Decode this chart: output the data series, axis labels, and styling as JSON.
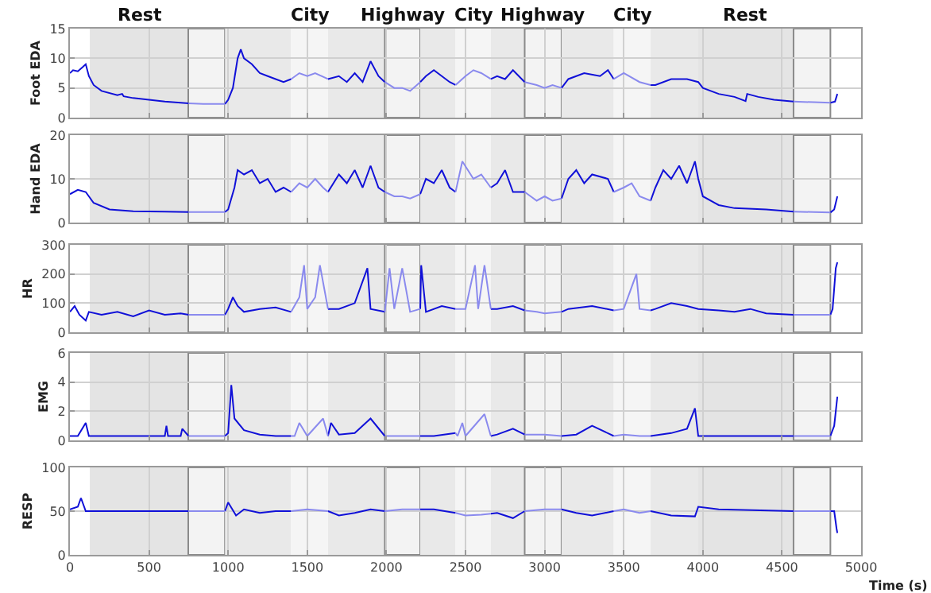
{
  "chart_data": [
    {
      "type": "line",
      "ylabel": "Foot EDA",
      "xlim": [
        0,
        5000
      ],
      "xticks": [
        0,
        500,
        1000,
        1500,
        2000,
        2500,
        3000,
        3500,
        4000,
        4500,
        5000
      ],
      "ylim": [
        0,
        15
      ],
      "yticks": [
        0,
        5,
        10,
        15
      ],
      "tick_labels": "y",
      "grid": true,
      "bands": [
        {
          "axis": "x",
          "from": 126,
          "to": 748,
          "label": "Rest",
          "color": "#e4e4e4"
        },
        {
          "axis": "x",
          "from": 748,
          "to": 980,
          "color": "#f3f3f3"
        },
        {
          "axis": "x",
          "from": 980,
          "to": 1398,
          "color": "#e9e9e9"
        },
        {
          "axis": "x",
          "from": 1398,
          "to": 1631,
          "label": "City",
          "color": "#f5f5f5"
        },
        {
          "axis": "x",
          "from": 1631,
          "to": 1990,
          "color": "#e9e9e9"
        },
        {
          "axis": "x",
          "from": 1990,
          "to": 2214,
          "label": "Highway",
          "color": "#f3f3f3"
        },
        {
          "axis": "x",
          "from": 2214,
          "to": 2437,
          "color": "#e9e9e9"
        },
        {
          "axis": "x",
          "from": 2437,
          "to": 2660,
          "label": "City",
          "color": "#f5f5f5"
        },
        {
          "axis": "x",
          "from": 2660,
          "to": 2874,
          "color": "#e9e9e9"
        },
        {
          "axis": "x",
          "from": 2874,
          "to": 3107,
          "label": "Highway",
          "color": "#f3f3f3"
        },
        {
          "axis": "x",
          "from": 3107,
          "to": 3437,
          "color": "#e9e9e9"
        },
        {
          "axis": "x",
          "from": 3437,
          "to": 3670,
          "label": "City",
          "color": "#f5f5f5"
        },
        {
          "axis": "x",
          "from": 3670,
          "to": 3971,
          "color": "#e9e9e9"
        },
        {
          "axis": "x",
          "from": 3971,
          "to": 4573,
          "label": "Rest",
          "color": "#e4e4e4"
        },
        {
          "axis": "x",
          "from": 4573,
          "to": 4806,
          "color": "#f3f3f3"
        }
      ],
      "series": [
        {
          "color": "#1010d8",
          "x": [
            0,
            20,
            50,
            80,
            100,
            120,
            150,
            200,
            300,
            330,
            340,
            400,
            500,
            600,
            700,
            750,
            null,
            980,
            1000,
            1030,
            1060,
            1080,
            1100,
            1150,
            1200,
            1250,
            1300,
            1350,
            1398,
            null,
            1631,
            1700,
            1750,
            1800,
            1850,
            1900,
            1950,
            1990,
            null,
            2214,
            2250,
            2300,
            2350,
            2400,
            2437,
            null,
            2660,
            2700,
            2750,
            2800,
            2874,
            null,
            3107,
            3150,
            3250,
            3350,
            3400,
            3437,
            null,
            3670,
            3700,
            3800,
            3900,
            3971,
            4000,
            4100,
            4200,
            4270,
            4280,
            4350,
            4450,
            4573,
            null,
            4806,
            4835,
            4850
          ],
          "values": [
            7.5,
            8,
            7.8,
            8.5,
            9,
            7,
            5.5,
            4.5,
            3.8,
            4,
            3.6,
            3.3,
            3,
            2.7,
            2.5,
            2.4,
            null,
            2.3,
            3,
            5,
            10,
            11.5,
            10,
            9,
            7.5,
            7,
            6.5,
            6,
            6.5,
            null,
            6.5,
            7,
            6,
            7.5,
            6,
            9.5,
            7,
            6,
            null,
            6,
            7,
            8,
            7,
            6,
            5.5,
            null,
            6.5,
            7,
            6.5,
            8,
            6,
            null,
            5,
            6.5,
            7.5,
            7,
            8,
            6.5,
            null,
            5.5,
            5.5,
            6.5,
            6.5,
            6,
            5,
            4,
            3.5,
            2.8,
            4,
            3.5,
            3,
            2.7,
            null,
            2.5,
            2.7,
            4
          ]
        },
        {
          "color": "#8a8aee",
          "x": [
            750,
            850,
            980,
            null,
            1398,
            1450,
            1500,
            1550,
            1631,
            null,
            1990,
            2050,
            2100,
            2150,
            2214,
            null,
            2437,
            2500,
            2550,
            2600,
            2660,
            null,
            2874,
            2950,
            3000,
            3050,
            3107,
            null,
            3437,
            3500,
            3600,
            3670,
            null,
            4573,
            4700,
            4806
          ],
          "values": [
            2.4,
            2.3,
            2.3,
            null,
            6.5,
            7.5,
            7,
            7.5,
            6.5,
            null,
            6,
            5,
            5,
            4.5,
            6,
            null,
            5.5,
            7,
            8,
            7.5,
            6.5,
            null,
            6,
            5.5,
            5,
            5.5,
            5,
            null,
            6.5,
            7.5,
            6,
            5.5,
            null,
            2.7,
            2.6,
            2.5
          ]
        }
      ]
    },
    {
      "type": "line",
      "ylabel": "Hand EDA",
      "xlim": [
        0,
        5000
      ],
      "xticks": [
        0,
        500,
        1000,
        1500,
        2000,
        2500,
        3000,
        3500,
        4000,
        4500,
        5000
      ],
      "ylim": [
        0,
        20
      ],
      "yticks": [
        0,
        10,
        20
      ],
      "tick_labels": "y",
      "grid": true,
      "bands": [
        {
          "axis": "x",
          "from": 126,
          "to": 748,
          "color": "#e4e4e4"
        },
        {
          "axis": "x",
          "from": 748,
          "to": 980,
          "color": "#f3f3f3"
        },
        {
          "axis": "x",
          "from": 980,
          "to": 1398,
          "color": "#e9e9e9"
        },
        {
          "axis": "x",
          "from": 1398,
          "to": 1631,
          "color": "#f5f5f5"
        },
        {
          "axis": "x",
          "from": 1631,
          "to": 1990,
          "color": "#e9e9e9"
        },
        {
          "axis": "x",
          "from": 1990,
          "to": 2214,
          "color": "#f3f3f3"
        },
        {
          "axis": "x",
          "from": 2214,
          "to": 2437,
          "color": "#e9e9e9"
        },
        {
          "axis": "x",
          "from": 2437,
          "to": 2660,
          "color": "#f5f5f5"
        },
        {
          "axis": "x",
          "from": 2660,
          "to": 2874,
          "color": "#e9e9e9"
        },
        {
          "axis": "x",
          "from": 2874,
          "to": 3107,
          "color": "#f3f3f3"
        },
        {
          "axis": "x",
          "from": 3107,
          "to": 3437,
          "color": "#e9e9e9"
        },
        {
          "axis": "x",
          "from": 3437,
          "to": 3670,
          "color": "#f5f5f5"
        },
        {
          "axis": "x",
          "from": 3670,
          "to": 3971,
          "color": "#e9e9e9"
        },
        {
          "axis": "x",
          "from": 3971,
          "to": 4573,
          "color": "#e4e4e4"
        },
        {
          "axis": "x",
          "from": 4573,
          "to": 4806,
          "color": "#f3f3f3"
        }
      ],
      "series": [
        {
          "color": "#1010d8",
          "x": [
            0,
            50,
            100,
            150,
            250,
            400,
            600,
            750,
            null,
            980,
            1000,
            1040,
            1060,
            1100,
            1150,
            1200,
            1250,
            1300,
            1350,
            1398,
            null,
            1631,
            1700,
            1750,
            1800,
            1850,
            1900,
            1950,
            1990,
            null,
            2214,
            2250,
            2300,
            2350,
            2400,
            2437,
            null,
            2660,
            2700,
            2750,
            2800,
            2874,
            null,
            3107,
            3150,
            3200,
            3250,
            3300,
            3400,
            3437,
            null,
            3670,
            3700,
            3750,
            3800,
            3850,
            3900,
            3950,
            3971,
            4000,
            4100,
            4200,
            4400,
            4573,
            null,
            4806,
            4830,
            4850
          ],
          "values": [
            6.5,
            7.5,
            7,
            4.5,
            3,
            2.6,
            2.5,
            2.4,
            null,
            2.4,
            3,
            8,
            12,
            11,
            12,
            9,
            10,
            7,
            8,
            7,
            null,
            7,
            11,
            9,
            12,
            8,
            13,
            8,
            7,
            null,
            6.5,
            10,
            9,
            12,
            8,
            7,
            null,
            8,
            9,
            12,
            7,
            7,
            null,
            5.5,
            10,
            12,
            9,
            11,
            10,
            7,
            null,
            5,
            8,
            12,
            10,
            13,
            9,
            14,
            10,
            6,
            4,
            3.3,
            3,
            2.5,
            null,
            2.3,
            3,
            6
          ]
        },
        {
          "color": "#8a8aee",
          "x": [
            750,
            850,
            980,
            null,
            1398,
            1450,
            1500,
            1550,
            1600,
            1631,
            null,
            1990,
            2050,
            2100,
            2150,
            2214,
            null,
            2437,
            2480,
            2550,
            2600,
            2660,
            null,
            2874,
            2950,
            3000,
            3050,
            3107,
            null,
            3437,
            3500,
            3550,
            3600,
            3670,
            null,
            4573,
            4700,
            4806
          ],
          "values": [
            2.4,
            2.4,
            2.4,
            null,
            7,
            9,
            8,
            10,
            8,
            7,
            null,
            7,
            6,
            6,
            5.5,
            6.5,
            null,
            7,
            14,
            10,
            11,
            8,
            null,
            7,
            5,
            6,
            5,
            5.5,
            null,
            7,
            8,
            9,
            6,
            5,
            null,
            2.5,
            2.4,
            2.3
          ]
        }
      ]
    },
    {
      "type": "line",
      "ylabel": "HR",
      "xlim": [
        0,
        5000
      ],
      "xticks": [
        0,
        500,
        1000,
        1500,
        2000,
        2500,
        3000,
        3500,
        4000,
        4500,
        5000
      ],
      "ylim": [
        0,
        300
      ],
      "yticks": [
        0,
        100,
        200,
        300
      ],
      "tick_labels": "y",
      "grid": true,
      "bands": [
        {
          "axis": "x",
          "from": 126,
          "to": 748,
          "color": "#e4e4e4"
        },
        {
          "axis": "x",
          "from": 748,
          "to": 980,
          "color": "#f3f3f3"
        },
        {
          "axis": "x",
          "from": 980,
          "to": 1398,
          "color": "#e9e9e9"
        },
        {
          "axis": "x",
          "from": 1398,
          "to": 1631,
          "color": "#f5f5f5"
        },
        {
          "axis": "x",
          "from": 1631,
          "to": 1990,
          "color": "#e9e9e9"
        },
        {
          "axis": "x",
          "from": 1990,
          "to": 2214,
          "color": "#f3f3f3"
        },
        {
          "axis": "x",
          "from": 2214,
          "to": 2437,
          "color": "#e9e9e9"
        },
        {
          "axis": "x",
          "from": 2437,
          "to": 2660,
          "color": "#f5f5f5"
        },
        {
          "axis": "x",
          "from": 2660,
          "to": 2874,
          "color": "#e9e9e9"
        },
        {
          "axis": "x",
          "from": 2874,
          "to": 3107,
          "color": "#f3f3f3"
        },
        {
          "axis": "x",
          "from": 3107,
          "to": 3437,
          "color": "#e9e9e9"
        },
        {
          "axis": "x",
          "from": 3437,
          "to": 3670,
          "color": "#f5f5f5"
        },
        {
          "axis": "x",
          "from": 3670,
          "to": 3971,
          "color": "#e9e9e9"
        },
        {
          "axis": "x",
          "from": 3971,
          "to": 4573,
          "color": "#e4e4e4"
        },
        {
          "axis": "x",
          "from": 4573,
          "to": 4806,
          "color": "#f3f3f3"
        }
      ],
      "series": [
        {
          "color": "#1010d8",
          "x": [
            0,
            30,
            60,
            100,
            120,
            200,
            300,
            400,
            500,
            600,
            700,
            750,
            null,
            980,
            1000,
            1030,
            1060,
            1100,
            1200,
            1300,
            1398,
            null,
            1631,
            1700,
            1800,
            1880,
            1900,
            1990,
            null,
            2214,
            2220,
            2250,
            2350,
            2437,
            null,
            2660,
            2700,
            2800,
            2874,
            null,
            3107,
            3150,
            3300,
            3437,
            null,
            3670,
            3700,
            3800,
            3900,
            3971,
            4100,
            4200,
            4300,
            4400,
            4573,
            null,
            4806,
            4820,
            4840,
            4850
          ],
          "values": [
            70,
            90,
            60,
            40,
            70,
            60,
            70,
            55,
            75,
            60,
            65,
            60,
            null,
            60,
            80,
            120,
            90,
            70,
            80,
            85,
            70,
            null,
            80,
            80,
            100,
            220,
            80,
            70,
            null,
            80,
            230,
            70,
            90,
            80,
            null,
            80,
            80,
            90,
            75,
            null,
            70,
            80,
            90,
            75,
            null,
            75,
            80,
            100,
            90,
            80,
            75,
            70,
            80,
            65,
            60,
            null,
            60,
            80,
            220,
            240
          ]
        },
        {
          "color": "#8a8aee",
          "x": [
            750,
            850,
            980,
            null,
            1398,
            1450,
            1480,
            1500,
            1550,
            1580,
            1631,
            null,
            1990,
            2020,
            2050,
            2100,
            2150,
            2214,
            null,
            2437,
            2500,
            2560,
            2580,
            2620,
            2660,
            null,
            2874,
            2950,
            3000,
            3107,
            null,
            3437,
            3500,
            3580,
            3600,
            3670,
            null,
            4573,
            4700,
            4806
          ],
          "values": [
            60,
            60,
            60,
            null,
            70,
            120,
            230,
            80,
            120,
            230,
            80,
            null,
            70,
            220,
            80,
            220,
            70,
            80,
            null,
            80,
            80,
            230,
            80,
            230,
            80,
            null,
            75,
            70,
            65,
            70,
            null,
            75,
            80,
            200,
            80,
            75,
            null,
            60,
            60,
            60
          ]
        }
      ]
    },
    {
      "type": "line",
      "ylabel": "EMG",
      "xlim": [
        0,
        5000
      ],
      "xticks": [
        0,
        500,
        1000,
        1500,
        2000,
        2500,
        3000,
        3500,
        4000,
        4500,
        5000
      ],
      "ylim": [
        0,
        6
      ],
      "yticks": [
        0,
        2,
        4,
        6
      ],
      "tick_labels": "y",
      "grid": true,
      "bands": [
        {
          "axis": "x",
          "from": 126,
          "to": 748,
          "color": "#e4e4e4"
        },
        {
          "axis": "x",
          "from": 748,
          "to": 980,
          "color": "#f3f3f3"
        },
        {
          "axis": "x",
          "from": 980,
          "to": 1398,
          "color": "#e9e9e9"
        },
        {
          "axis": "x",
          "from": 1398,
          "to": 1631,
          "color": "#f5f5f5"
        },
        {
          "axis": "x",
          "from": 1631,
          "to": 1990,
          "color": "#e9e9e9"
        },
        {
          "axis": "x",
          "from": 1990,
          "to": 2214,
          "color": "#f3f3f3"
        },
        {
          "axis": "x",
          "from": 2214,
          "to": 2437,
          "color": "#e9e9e9"
        },
        {
          "axis": "x",
          "from": 2437,
          "to": 2660,
          "color": "#f5f5f5"
        },
        {
          "axis": "x",
          "from": 2660,
          "to": 2874,
          "color": "#e9e9e9"
        },
        {
          "axis": "x",
          "from": 2874,
          "to": 3107,
          "color": "#f3f3f3"
        },
        {
          "axis": "x",
          "from": 3107,
          "to": 3437,
          "color": "#e9e9e9"
        },
        {
          "axis": "x",
          "from": 3437,
          "to": 3670,
          "color": "#f5f5f5"
        },
        {
          "axis": "x",
          "from": 3670,
          "to": 3971,
          "color": "#e9e9e9"
        },
        {
          "axis": "x",
          "from": 3971,
          "to": 4573,
          "color": "#e4e4e4"
        },
        {
          "axis": "x",
          "from": 4573,
          "to": 4806,
          "color": "#f3f3f3"
        }
      ],
      "series": [
        {
          "color": "#1010d8",
          "x": [
            0,
            50,
            100,
            120,
            600,
            610,
            620,
            700,
            710,
            750,
            null,
            980,
            1000,
            1020,
            1040,
            1100,
            1200,
            1300,
            1398,
            null,
            1631,
            1650,
            1700,
            1800,
            1900,
            1990,
            null,
            2214,
            2300,
            2437,
            null,
            2660,
            2700,
            2800,
            2874,
            null,
            3107,
            3200,
            3300,
            3437,
            null,
            3670,
            3800,
            3900,
            3950,
            3971,
            4573,
            null,
            4806,
            4830,
            4850
          ],
          "values": [
            0.3,
            0.3,
            1.2,
            0.3,
            0.3,
            1,
            0.3,
            0.3,
            0.8,
            0.3,
            null,
            0.3,
            0.5,
            3.8,
            1.5,
            0.7,
            0.4,
            0.3,
            0.3,
            null,
            0.3,
            1.2,
            0.4,
            0.5,
            1.5,
            0.3,
            null,
            0.3,
            0.3,
            0.5,
            null,
            0.3,
            0.4,
            0.8,
            0.4,
            null,
            0.3,
            0.4,
            1,
            0.3,
            null,
            0.3,
            0.5,
            0.8,
            2.2,
            0.3,
            0.3,
            null,
            0.3,
            1,
            3
          ]
        },
        {
          "color": "#8a8aee",
          "x": [
            750,
            980,
            null,
            1398,
            1420,
            1450,
            1500,
            1600,
            1631,
            null,
            1990,
            2214,
            null,
            2437,
            2450,
            2480,
            2500,
            2620,
            2660,
            null,
            2874,
            3000,
            3107,
            null,
            3437,
            3500,
            3600,
            3670,
            null,
            4573,
            4806
          ],
          "values": [
            0.3,
            0.3,
            null,
            0.3,
            0.3,
            1.2,
            0.3,
            1.5,
            0.3,
            null,
            0.3,
            0.3,
            null,
            0.5,
            0.3,
            1.2,
            0.3,
            1.8,
            0.3,
            null,
            0.4,
            0.4,
            0.3,
            null,
            0.3,
            0.4,
            0.3,
            0.3,
            null,
            0.3,
            0.3
          ]
        }
      ]
    },
    {
      "type": "line",
      "ylabel": "RESP",
      "xlabel": "Time (s)",
      "xlim": [
        0,
        5000
      ],
      "xticks": [
        0,
        500,
        1000,
        1500,
        2000,
        2500,
        3000,
        3500,
        4000,
        4500,
        5000
      ],
      "ylim": [
        0,
        100
      ],
      "yticks": [
        0,
        50,
        100
      ],
      "grid": true,
      "bands": [
        {
          "axis": "x",
          "from": 126,
          "to": 748,
          "color": "#e4e4e4"
        },
        {
          "axis": "x",
          "from": 748,
          "to": 980,
          "color": "#f3f3f3"
        },
        {
          "axis": "x",
          "from": 980,
          "to": 1398,
          "color": "#e9e9e9"
        },
        {
          "axis": "x",
          "from": 1398,
          "to": 1631,
          "color": "#f5f5f5"
        },
        {
          "axis": "x",
          "from": 1631,
          "to": 1990,
          "color": "#e9e9e9"
        },
        {
          "axis": "x",
          "from": 1990,
          "to": 2214,
          "color": "#f3f3f3"
        },
        {
          "axis": "x",
          "from": 2214,
          "to": 2437,
          "color": "#e9e9e9"
        },
        {
          "axis": "x",
          "from": 2437,
          "to": 2660,
          "color": "#f5f5f5"
        },
        {
          "axis": "x",
          "from": 2660,
          "to": 2874,
          "color": "#e9e9e9"
        },
        {
          "axis": "x",
          "from": 2874,
          "to": 3107,
          "color": "#f3f3f3"
        },
        {
          "axis": "x",
          "from": 3107,
          "to": 3437,
          "color": "#e9e9e9"
        },
        {
          "axis": "x",
          "from": 3437,
          "to": 3670,
          "color": "#f5f5f5"
        },
        {
          "axis": "x",
          "from": 3670,
          "to": 3971,
          "color": "#e9e9e9"
        },
        {
          "axis": "x",
          "from": 3971,
          "to": 4573,
          "color": "#e4e4e4"
        },
        {
          "axis": "x",
          "from": 4573,
          "to": 4806,
          "color": "#f3f3f3"
        }
      ],
      "series": [
        {
          "color": "#1010d8",
          "x": [
            0,
            50,
            70,
            100,
            750,
            null,
            980,
            1000,
            1050,
            1100,
            1200,
            1300,
            1398,
            null,
            1631,
            1700,
            1800,
            1900,
            1990,
            null,
            2214,
            2300,
            2437,
            null,
            2660,
            2700,
            2800,
            2874,
            null,
            3107,
            3200,
            3300,
            3437,
            null,
            3670,
            3800,
            3950,
            3971,
            4100,
            4573,
            null,
            4806,
            4830,
            4845,
            4850
          ],
          "values": [
            52,
            55,
            65,
            50,
            50,
            null,
            50,
            60,
            45,
            52,
            48,
            50,
            50,
            null,
            50,
            45,
            48,
            52,
            50,
            null,
            52,
            52,
            48,
            null,
            47,
            48,
            42,
            50,
            null,
            52,
            48,
            45,
            50,
            null,
            50,
            45,
            44,
            55,
            52,
            50,
            null,
            50,
            50,
            30,
            25
          ]
        },
        {
          "color": "#8a8aee",
          "x": [
            750,
            980,
            null,
            1398,
            1500,
            1631,
            null,
            1990,
            2100,
            2214,
            null,
            2437,
            2500,
            2600,
            2660,
            null,
            2874,
            3000,
            3107,
            null,
            3437,
            3500,
            3600,
            3670,
            null,
            4573,
            4806
          ],
          "values": [
            50,
            50,
            null,
            50,
            52,
            50,
            null,
            50,
            52,
            52,
            null,
            48,
            45,
            46,
            47,
            null,
            50,
            52,
            52,
            null,
            50,
            52,
            48,
            50,
            null,
            50,
            50
          ]
        }
      ]
    }
  ]
}
